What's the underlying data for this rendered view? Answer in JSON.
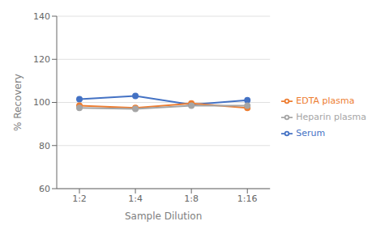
{
  "chart_data": {
    "type": "line",
    "categories": [
      "1:2",
      "1:4",
      "1:8",
      "1:16"
    ],
    "series": [
      {
        "name": "Serum",
        "color": "#4472c4",
        "values": [
          101.5,
          103.0,
          99.0,
          101.0
        ]
      },
      {
        "name": "EDTA plasma",
        "color": "#ed7d31",
        "values": [
          98.5,
          97.5,
          99.5,
          97.5
        ]
      },
      {
        "name": "Heparin plasma",
        "color": "#a5a5a5",
        "values": [
          97.5,
          97.0,
          98.5,
          98.5
        ]
      }
    ],
    "marker": "circle",
    "xlabel": "Sample Dilution",
    "ylabel": "% Recovery",
    "ylim": [
      60,
      140
    ],
    "yticks": [
      60,
      80,
      100,
      120,
      140
    ],
    "grid": true,
    "legend": "right"
  }
}
